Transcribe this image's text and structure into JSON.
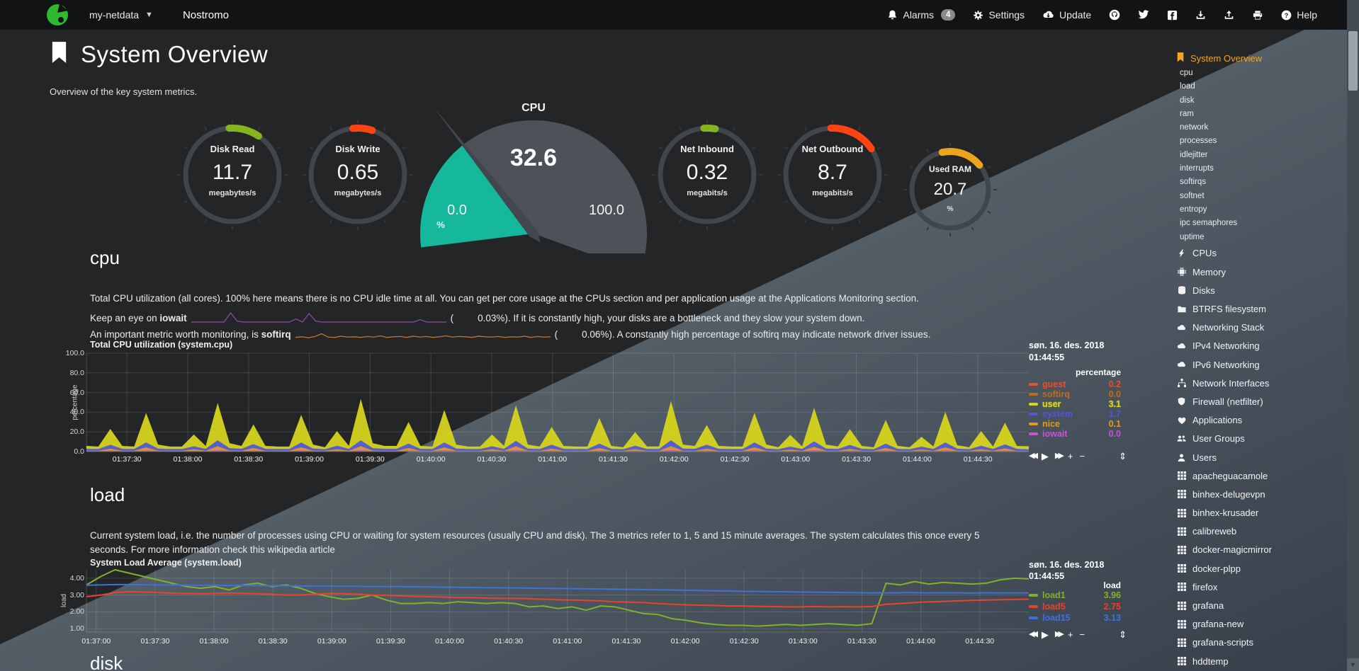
{
  "navbar": {
    "hostname": "my-netdata",
    "brand": "Nostromo",
    "alarms_label": "Alarms",
    "alarms_badge": "4",
    "settings_label": "Settings",
    "update_label": "Update",
    "help_label": "Help"
  },
  "page": {
    "title": "System Overview",
    "subtitle": "Overview of the key system metrics."
  },
  "gauges": [
    {
      "id": "disk-read",
      "type": "ring",
      "title": "Disk Read",
      "value": "11.7",
      "units": "megabytes/s",
      "arc_color": "#84b51e",
      "arc_start": -4,
      "arc_end": 34
    },
    {
      "id": "disk-write",
      "type": "ring",
      "title": "Disk Write",
      "value": "0.65",
      "units": "megabytes/s",
      "arc_color": "#ff4412",
      "arc_start": -6,
      "arc_end": 18
    },
    {
      "id": "cpu",
      "type": "gauge",
      "title": "CPU",
      "value": "32.6",
      "min": "0.0",
      "max": "100.0",
      "units": "%",
      "fill_color": "#16b89c",
      "percent": 32.6
    },
    {
      "id": "net-inbound",
      "type": "ring",
      "title": "Net Inbound",
      "value": "0.32",
      "units": "megabits/s",
      "arc_color": "#84b51e",
      "arc_start": -4,
      "arc_end": 10
    },
    {
      "id": "net-outbound",
      "type": "ring",
      "title": "Net Outbound",
      "value": "8.7",
      "units": "megabits/s",
      "arc_color": "#ff4412",
      "arc_start": -2,
      "arc_end": 56
    },
    {
      "id": "used-ram",
      "type": "ring",
      "title": "Used RAM",
      "value": "20.7",
      "units": "%",
      "arc_color": "#eda41d",
      "arc_start": -12,
      "arc_end": 50,
      "small": true
    }
  ],
  "cpu_section": {
    "heading": "cpu",
    "p1": "Total CPU utilization (all cores). 100% here means there is no CPU idle time at all. You can get per core usage at the CPUs section and per application usage at the Applications Monitoring section.",
    "p2_prefix": "Keep an eye on ",
    "p2_bold": "iowait",
    "p2_open": "(",
    "p2_value": "0.03%",
    "p2_suffix": "). If it is constantly high, your disks are a bottleneck and they slow your system down.",
    "p3_prefix": "An important metric worth monitoring, is ",
    "p3_bold": "softirq",
    "p3_open": "(",
    "p3_value": "0.06%",
    "p3_suffix": "). A constantly high percentage of softirq may indicate network driver issues.",
    "iowait_spark": {
      "name": "iowait-sparkline",
      "color": "#8b4ba8",
      "max": 3,
      "data": [
        0,
        0,
        0,
        0,
        0,
        0,
        3,
        0.3,
        0,
        0,
        0,
        0,
        0,
        0,
        0,
        0,
        1,
        0,
        2.8,
        0.3,
        0,
        0,
        0,
        0,
        0,
        0,
        0,
        0,
        0,
        0,
        0,
        0,
        0,
        0,
        0,
        0.8,
        0,
        0,
        0,
        0
      ]
    },
    "softirq_spark": {
      "name": "softirq-sparkline",
      "color": "#c1742c",
      "max": 3,
      "data": [
        0.3,
        0.5,
        0.2,
        0.6,
        1.5,
        0.4,
        0.3,
        0.7,
        0.4,
        0.5,
        0.3,
        0.6,
        0.4,
        0.8,
        0.3,
        0.5,
        0.6,
        0.3,
        0.7,
        0.4,
        0.6,
        0.3,
        0.5,
        0.8,
        0.4,
        0.6,
        0.5,
        0.3,
        0.7,
        0.5,
        0.4,
        0.6,
        0.3,
        0.5,
        0.4,
        0.7,
        0.3,
        0.6,
        0.4,
        0.5
      ]
    }
  },
  "load_section": {
    "heading": "load",
    "p1": "Current system load, i.e. the number of processes using CPU or waiting for system resources (usually CPU and disk). The 3 metrics refer to 1, 5 and 15 minute averages. The system calculates this once every 5 seconds. For more information check this wikipedia article"
  },
  "disk_section": {
    "heading": "disk"
  },
  "chart_toolbar": {
    "icons": [
      {
        "name": "pan-backward-icon",
        "glyph": "◀◀"
      },
      {
        "name": "play-icon",
        "glyph": "▶"
      },
      {
        "name": "pan-forward-icon",
        "glyph": "▶▶"
      },
      {
        "name": "zoom-in-icon",
        "glyph": "+"
      },
      {
        "name": "zoom-out-icon",
        "glyph": "−"
      },
      {
        "name": "resize-icon",
        "glyph": "⇕"
      }
    ]
  },
  "chart_data": [
    {
      "type": "area",
      "stacked": true,
      "title": "Total CPU utilization (system.cpu)",
      "ylabel": "percentage",
      "legend_units": "percentage",
      "date_label": "søn. 16. des. 2018",
      "time_label": "01:44:55",
      "ylim": [
        0,
        100
      ],
      "grid": true,
      "legend_position": "right",
      "y_ticks": [
        {
          "label": "100.0",
          "v": 100
        },
        {
          "label": "80.0",
          "v": 80
        },
        {
          "label": "60.0",
          "v": 60
        },
        {
          "label": "40.0",
          "v": 40
        },
        {
          "label": "20.0",
          "v": 20
        },
        {
          "label": "0.0",
          "v": 0
        }
      ],
      "x_ticks": [
        "01:37:30",
        "01:38:00",
        "01:38:30",
        "01:39:00",
        "01:39:30",
        "01:40:00",
        "01:40:30",
        "01:41:00",
        "01:41:30",
        "01:42:00",
        "01:42:30",
        "01:43:00",
        "01:43:30",
        "01:44:00",
        "01:44:30"
      ],
      "x_tick_first_fraction": 0.043,
      "x_tick_step_fraction": 0.0645,
      "render_order": [
        "softirq",
        "guest",
        "iowait",
        "nice",
        "system",
        "user"
      ],
      "series": [
        {
          "name": "guest",
          "color": "#e8502e",
          "value": "0.2",
          "data_fill": 0.2
        },
        {
          "name": "softirq",
          "color": "#c06a1c",
          "value": "0.0",
          "data_fill": 0.3
        },
        {
          "name": "user",
          "color": "#d6d41c",
          "value": "3.1",
          "bold": true,
          "data": [
            3,
            2.5,
            16,
            3,
            2.5,
            30,
            4,
            2.5,
            2.5,
            12,
            3,
            38,
            5,
            3,
            20,
            3,
            2.5,
            2.5,
            28,
            4,
            2,
            15,
            3,
            42,
            5,
            3,
            3,
            22,
            3,
            2.5,
            33,
            4,
            2.5,
            2.5,
            12,
            3,
            36,
            4,
            2.5,
            18,
            3,
            2.5,
            2.5,
            26,
            3,
            2,
            14,
            2.5,
            2.5,
            40,
            4,
            3,
            20,
            3,
            2.5,
            2.5,
            30,
            4,
            2,
            12,
            2.5,
            34,
            4,
            2.5,
            16,
            3,
            2,
            24,
            3,
            2,
            10,
            2.5,
            31,
            3.5,
            2,
            15,
            2.5,
            22,
            3,
            3.1
          ]
        },
        {
          "name": "system",
          "color": "#5157d8",
          "value": "1.7",
          "data": [
            2,
            1.8,
            4,
            2,
            1.8,
            5,
            2.2,
            1.8,
            1.8,
            3,
            2,
            6,
            2.5,
            2,
            4,
            2,
            1.8,
            1.8,
            5,
            2.2,
            1.6,
            3.5,
            2,
            6,
            2.5,
            2,
            2,
            4.5,
            2,
            1.8,
            5,
            2.2,
            1.8,
            1.8,
            3,
            2,
            5.5,
            2.2,
            1.8,
            4,
            2,
            1.8,
            1.8,
            4.5,
            2,
            1.6,
            3.5,
            1.9,
            1.9,
            6,
            2.2,
            2,
            4,
            2,
            1.8,
            1.8,
            5,
            2.2,
            1.6,
            3,
            1.9,
            5.5,
            2.2,
            1.9,
            4,
            2,
            1.6,
            4.5,
            2,
            1.6,
            3,
            1.9,
            5,
            2.1,
            1.6,
            3.5,
            1.9,
            4.2,
            2,
            1.7
          ]
        },
        {
          "name": "nice",
          "color": "#e09a20",
          "value": "0.1",
          "data": [
            0.2,
            0.2,
            2,
            0.2,
            0.2,
            3,
            0.3,
            0.2,
            0.2,
            1.5,
            0.2,
            4,
            0.4,
            0.2,
            2.5,
            0.2,
            0.2,
            0.2,
            3,
            0.3,
            0.2,
            1.5,
            0.2,
            4,
            0.4,
            0.2,
            0.2,
            2.5,
            0.2,
            0.2,
            3,
            0.3,
            0.2,
            0.2,
            1.5,
            0.2,
            4,
            0.3,
            0.2,
            2,
            0.2,
            0.2,
            0.2,
            2.5,
            0.2,
            0.2,
            1.5,
            0.2,
            0.2,
            4,
            0.3,
            0.2,
            2,
            0.2,
            0.2,
            0.2,
            3,
            0.3,
            0.2,
            1.2,
            0.2,
            3.5,
            0.3,
            0.2,
            1.8,
            0.2,
            0.2,
            2.5,
            0.2,
            0.2,
            1.2,
            0.2,
            3,
            0.3,
            0.2,
            1.5,
            0.2,
            2.2,
            0.2,
            0.1
          ]
        },
        {
          "name": "iowait",
          "color": "#c455d6",
          "value": "0.0",
          "data": [
            0.1,
            0.1,
            0.5,
            0.1,
            0.1,
            0.8,
            0.1,
            0.1,
            0.1,
            0.4,
            0.1,
            1,
            0.1,
            0.1,
            0.6,
            0.1,
            0.1,
            0.1,
            0.8,
            0.1,
            0.1,
            0.4,
            0.1,
            1,
            0.1,
            0.1,
            0.1,
            0.6,
            0.1,
            0.1,
            0.8,
            0.1,
            0.1,
            0.1,
            0.4,
            0.1,
            1,
            0.1,
            0.1,
            0.5,
            0.1,
            0.1,
            0.1,
            0.6,
            0.1,
            0.1,
            0.4,
            0.1,
            0.1,
            1,
            0.1,
            0.1,
            0.5,
            0.1,
            0.1,
            0.1,
            0.8,
            0.1,
            0.1,
            0.3,
            0.1,
            0.9,
            0.1,
            0.1,
            0.5,
            0.1,
            0.1,
            0.6,
            0.1,
            0.1,
            0.3,
            0.1,
            0.8,
            0.1,
            0.1,
            0.4,
            0.1,
            0.5,
            0.1,
            0
          ]
        }
      ]
    },
    {
      "type": "line",
      "stacked": false,
      "title": "System Load Average (system.load)",
      "ylabel": "load",
      "legend_units": "load",
      "date_label": "søn. 16. des. 2018",
      "time_label": "01:44:55",
      "ylim": [
        0.8,
        4.5
      ],
      "grid": true,
      "legend_position": "right",
      "y_ticks": [
        {
          "label": "4.00",
          "v": 4
        },
        {
          "label": "3.00",
          "v": 3
        },
        {
          "label": "2.00",
          "v": 2
        },
        {
          "label": "1.00",
          "v": 1
        }
      ],
      "x_ticks": [
        "01:37:00",
        "01:37:30",
        "01:38:00",
        "01:38:30",
        "01:39:00",
        "01:39:30",
        "01:40:00",
        "01:40:30",
        "01:41:00",
        "01:41:30",
        "01:42:00",
        "01:42:30",
        "01:43:00",
        "01:43:30",
        "01:44:00",
        "01:44:30"
      ],
      "x_tick_first_fraction": 0.0104,
      "x_tick_step_fraction": 0.0625,
      "series": [
        {
          "name": "load1",
          "color": "#7eb22c",
          "value": "3.96",
          "data": [
            3.6,
            4.1,
            4.5,
            4.3,
            4.1,
            3.9,
            3.7,
            3.5,
            3.4,
            3.5,
            3.3,
            3.6,
            3.7,
            3.5,
            3.6,
            3.4,
            3.1,
            2.9,
            2.75,
            2.8,
            3.0,
            2.7,
            2.5,
            2.5,
            2.55,
            2.5,
            2.6,
            2.55,
            2.5,
            2.55,
            2.5,
            2.3,
            2.35,
            2.2,
            2.3,
            2.1,
            2.35,
            2.3,
            2.1,
            1.9,
            1.85,
            1.6,
            1.5,
            1.35,
            1.25,
            1.2,
            1.2,
            1.15,
            1.2,
            1.25,
            1.2,
            1.25,
            1.3,
            1.25,
            1.2,
            1.3,
            3.7,
            3.6,
            3.8,
            3.65,
            3.75,
            3.7,
            3.65,
            3.7,
            3.9,
            4.0,
            3.96
          ]
        },
        {
          "name": "load5",
          "color": "#e8432c",
          "value": "2.75",
          "data": [
            2.9,
            3.0,
            3.15,
            3.2,
            3.18,
            3.15,
            3.12,
            3.1,
            3.08,
            3.1,
            3.12,
            3.1,
            3.08,
            3.05,
            3.0,
            3.0,
            3.05,
            3.1,
            3.08,
            3.05,
            3.0,
            2.98,
            2.95,
            2.92,
            2.9,
            2.88,
            2.85,
            2.85,
            2.82,
            2.8,
            2.8,
            2.78,
            2.75,
            2.72,
            2.7,
            2.68,
            2.65,
            2.6,
            2.58,
            2.55,
            2.5,
            2.45,
            2.42,
            2.4,
            2.38,
            2.35,
            2.35,
            2.33,
            2.32,
            2.3,
            2.3,
            2.32,
            2.3,
            2.31,
            2.3,
            2.32,
            2.45,
            2.5,
            2.55,
            2.6,
            2.62,
            2.65,
            2.68,
            2.7,
            2.72,
            2.74,
            2.75
          ]
        },
        {
          "name": "load15",
          "color": "#3e71d9",
          "value": "3.13",
          "data": [
            3.58,
            3.6,
            3.62,
            3.62,
            3.61,
            3.6,
            3.6,
            3.59,
            3.58,
            3.58,
            3.57,
            3.57,
            3.56,
            3.55,
            3.55,
            3.54,
            3.53,
            3.53,
            3.52,
            3.52,
            3.51,
            3.5,
            3.5,
            3.49,
            3.48,
            3.47,
            3.46,
            3.45,
            3.44,
            3.43,
            3.42,
            3.41,
            3.4,
            3.39,
            3.38,
            3.37,
            3.36,
            3.35,
            3.34,
            3.33,
            3.31,
            3.3,
            3.28,
            3.27,
            3.25,
            3.24,
            3.22,
            3.21,
            3.2,
            3.19,
            3.18,
            3.17,
            3.16,
            3.15,
            3.14,
            3.13,
            3.13,
            3.14,
            3.14,
            3.13,
            3.13,
            3.13,
            3.12,
            3.13,
            3.13,
            3.13,
            3.13
          ]
        }
      ]
    }
  ],
  "sidebar": {
    "active": {
      "label": "System Overview",
      "icon": "bookmark-icon",
      "color": "#f7a41e"
    },
    "sub_items": [
      "cpu",
      "load",
      "disk",
      "ram",
      "network",
      "processes",
      "idlejitter",
      "interrupts",
      "softirqs",
      "softnet",
      "entropy",
      "ipc semaphores",
      "uptime"
    ],
    "items": [
      {
        "label": "CPUs",
        "icon": "bolt-icon"
      },
      {
        "label": "Memory",
        "icon": "microchip-icon"
      },
      {
        "label": "Disks",
        "icon": "hdd-icon"
      },
      {
        "label": "BTRFS filesystem",
        "icon": "folder-icon"
      },
      {
        "label": "Networking Stack",
        "icon": "cloud-icon"
      },
      {
        "label": "IPv4 Networking",
        "icon": "cloud-icon"
      },
      {
        "label": "IPv6 Networking",
        "icon": "cloud-icon"
      },
      {
        "label": "Network Interfaces",
        "icon": "network-icon"
      },
      {
        "label": "Firewall (netfilter)",
        "icon": "shield-icon"
      },
      {
        "label": "Applications",
        "icon": "apps-icon"
      },
      {
        "label": "User Groups",
        "icon": "users-icon"
      },
      {
        "label": "Users",
        "icon": "user-icon"
      },
      {
        "label": "apacheguacamole",
        "icon": "grid-icon"
      },
      {
        "label": "binhex-delugevpn",
        "icon": "grid-icon"
      },
      {
        "label": "binhex-krusader",
        "icon": "grid-icon"
      },
      {
        "label": "calibreweb",
        "icon": "grid-icon"
      },
      {
        "label": "docker-magicmirror",
        "icon": "grid-icon"
      },
      {
        "label": "docker-plpp",
        "icon": "grid-icon"
      },
      {
        "label": "firefox",
        "icon": "grid-icon"
      },
      {
        "label": "grafana",
        "icon": "grid-icon"
      },
      {
        "label": "grafana-new",
        "icon": "grid-icon"
      },
      {
        "label": "grafana-scripts",
        "icon": "grid-icon"
      },
      {
        "label": "hddtemp",
        "icon": "grid-icon"
      }
    ]
  }
}
